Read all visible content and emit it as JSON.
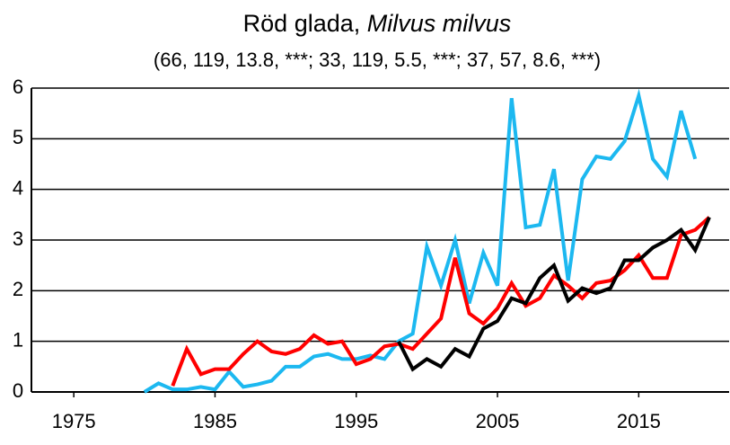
{
  "chart_data": {
    "type": "line",
    "title": {
      "common": "Röd glada,",
      "scientific": "Milvus milvus"
    },
    "subtitle": "(66, 119, 13.8, ***; 33, 119, 5.5, ***; 37, 57, 8.6, ***)",
    "x": [
      1980,
      1981,
      1982,
      1983,
      1984,
      1985,
      1986,
      1987,
      1988,
      1989,
      1990,
      1991,
      1992,
      1993,
      1994,
      1995,
      1996,
      1997,
      1998,
      1999,
      2000,
      2001,
      2002,
      2003,
      2004,
      2005,
      2006,
      2007,
      2008,
      2009,
      2010,
      2011,
      2012,
      2013,
      2014,
      2015,
      2016,
      2017,
      2018,
      2019,
      2020
    ],
    "series": [
      {
        "color": "#1cb8f0",
        "values": [
          0,
          0.17,
          0.05,
          0.05,
          0.1,
          0.05,
          0.4,
          0.1,
          0.15,
          0.22,
          0.5,
          0.5,
          0.7,
          0.75,
          0.65,
          0.65,
          0.72,
          0.65,
          1.0,
          1.15,
          2.87,
          2.1,
          3.0,
          1.75,
          2.75,
          2.1,
          5.8,
          3.25,
          3.3,
          4.4,
          2.2,
          4.2,
          4.65,
          4.6,
          4.95,
          5.85,
          4.6,
          4.25,
          5.55,
          4.6,
          null
        ]
      },
      {
        "color": "#ff0000",
        "values": [
          null,
          null,
          0.12,
          0.85,
          0.35,
          0.45,
          0.45,
          0.75,
          1.0,
          0.8,
          0.75,
          0.85,
          1.12,
          0.95,
          1.0,
          0.55,
          0.65,
          0.9,
          0.95,
          0.85,
          1.15,
          1.45,
          2.65,
          1.55,
          1.35,
          1.65,
          2.15,
          1.7,
          1.85,
          2.3,
          2.1,
          1.85,
          2.15,
          2.2,
          2.4,
          2.7,
          2.25,
          2.25,
          3.1,
          3.2,
          3.45
        ]
      },
      {
        "color": "#000000",
        "values": [
          null,
          null,
          null,
          null,
          null,
          null,
          null,
          null,
          null,
          null,
          null,
          null,
          null,
          null,
          null,
          null,
          null,
          null,
          1.0,
          0.45,
          0.65,
          0.5,
          0.85,
          0.7,
          1.25,
          1.4,
          1.85,
          1.75,
          2.25,
          2.5,
          1.8,
          2.05,
          1.95,
          2.05,
          2.6,
          2.6,
          2.85,
          3.0,
          3.2,
          2.8,
          3.45
        ]
      }
    ],
    "xlim": [
      1972,
      2021.4
    ],
    "xticks": [
      1975,
      1985,
      1995,
      2005,
      2015
    ],
    "ylim": [
      0,
      6
    ],
    "yticks": [
      0,
      1,
      2,
      3,
      4,
      5,
      6
    ],
    "grid": true
  }
}
